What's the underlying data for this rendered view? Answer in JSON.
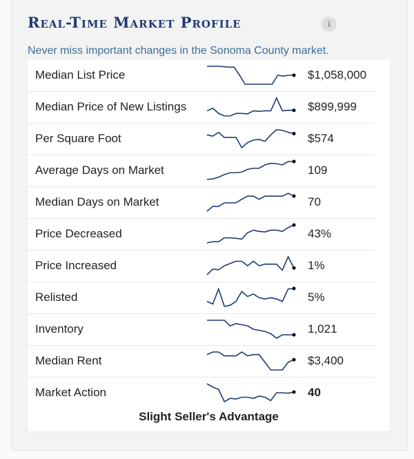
{
  "header": {
    "title": "Real-Time Market Profile",
    "info_icon": "info-icon",
    "subtitle": "Never miss important changes in the Sonoma County market."
  },
  "colors": {
    "title": "#1d3a73",
    "subtitle": "#3d6d99",
    "sparkline": "#1d3a73"
  },
  "metrics": [
    {
      "label": "Median List Price",
      "value": "$1,058,000",
      "trend": [
        10,
        10,
        10,
        9.8,
        9.5,
        9.5,
        5,
        0,
        0,
        0,
        0,
        0,
        0,
        5,
        4.5,
        5,
        5
      ]
    },
    {
      "label": "Median Price of New Listings",
      "value": "$899,999",
      "trend": [
        3,
        4,
        2,
        1,
        1,
        2,
        2,
        1.8,
        3,
        2.8,
        3,
        3,
        8,
        3,
        3.2,
        3.2
      ]
    },
    {
      "label": "Per Square Foot",
      "value": "$574",
      "trend": [
        6,
        5.5,
        7,
        5,
        5,
        5,
        1,
        3,
        4,
        4.2,
        3.5,
        6,
        8,
        7.8,
        7,
        6.5
      ]
    },
    {
      "label": "Average Days on Market",
      "value": "109",
      "trend": [
        0,
        0.3,
        1,
        2.2,
        3,
        3,
        3.3,
        4.5,
        5,
        5,
        6.5,
        7.2,
        7,
        6.5,
        8,
        8
      ]
    },
    {
      "label": "Median Days on Market",
      "value": "70",
      "trend": [
        0,
        2,
        2,
        3.5,
        3.5,
        3.5,
        5,
        6.3,
        6.3,
        5,
        6.3,
        6.3,
        6.3,
        6.3,
        7.5,
        6.3
      ]
    },
    {
      "label": "Price Decreased",
      "value": "43%",
      "trend": [
        0,
        0.5,
        0.5,
        2,
        2,
        1.8,
        1.5,
        4,
        5,
        4.5,
        4.3,
        5,
        5,
        4.5,
        6,
        7
      ]
    },
    {
      "label": "Price Increased",
      "value": "1%",
      "trend": [
        0,
        2.5,
        2.2,
        4,
        5,
        6,
        6,
        4,
        6,
        4,
        4.7,
        4.7,
        4.7,
        2,
        8,
        3
      ]
    },
    {
      "label": "Relisted",
      "value": "5%",
      "trend": [
        2,
        1,
        7,
        0,
        0.5,
        2,
        6,
        4,
        5,
        3.5,
        3,
        3.5,
        3,
        2,
        7,
        7.2
      ]
    },
    {
      "label": "Inventory",
      "value": "1,021",
      "trend": [
        8,
        8,
        8,
        8,
        5.5,
        6.5,
        6,
        5.5,
        4,
        3.5,
        3,
        2,
        0,
        1.5,
        1.5,
        1.5
      ]
    },
    {
      "label": "Median Rent",
      "value": "$3,400",
      "trend": [
        6,
        7,
        7,
        5.5,
        5.5,
        5.5,
        7,
        5.5,
        6,
        6,
        3,
        0,
        0,
        0,
        3,
        4
      ]
    },
    {
      "label": "Market Action",
      "value": "40",
      "trend": [
        8,
        6.5,
        5.5,
        0,
        1.5,
        1.2,
        2,
        2,
        1.5,
        2.5,
        2,
        0.5,
        4,
        4,
        3.8,
        4.3
      ]
    }
  ],
  "market_verdict": "Slight Seller's Advantage"
}
